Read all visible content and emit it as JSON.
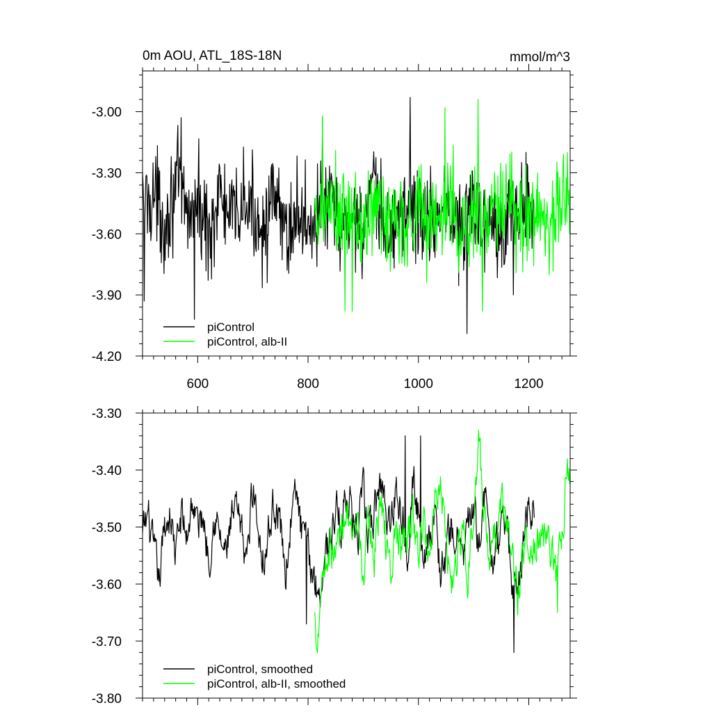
{
  "chart_data": [
    {
      "type": "line",
      "title": "0m AOU, ATL_18S-18N",
      "units": "mmol/m^3",
      "xlabel": "",
      "ylabel": "",
      "xlim": [
        500,
        1275
      ],
      "ylim": [
        -4.2,
        -2.8
      ],
      "xticks": [
        600,
        800,
        1000,
        1200
      ],
      "xtick_labels": [
        "600",
        "800",
        "1000",
        "1200"
      ],
      "yticks": [
        -4.2,
        -3.9,
        -3.6,
        -3.3,
        -3.0
      ],
      "ytick_labels": [
        "-4.20",
        "-3.90",
        "-3.60",
        "-3.30",
        "-3.00"
      ],
      "grid": false,
      "legend_position": "bottom-left",
      "series": [
        {
          "name": "piControl",
          "color": "#000000",
          "x_start": 500,
          "x_end": 1210,
          "points": [
            [
              500,
              -3.45
            ],
            [
              520,
              -3.4
            ],
            [
              540,
              -3.55
            ],
            [
              560,
              -3.35
            ],
            [
              580,
              -3.5
            ],
            [
              600,
              -3.45
            ],
            [
              620,
              -3.6
            ],
            [
              640,
              -3.4
            ],
            [
              660,
              -3.55
            ],
            [
              680,
              -3.45
            ],
            [
              700,
              -3.5
            ],
            [
              720,
              -3.55
            ],
            [
              740,
              -3.45
            ],
            [
              760,
              -3.6
            ],
            [
              780,
              -3.5
            ],
            [
              800,
              -3.55
            ],
            [
              820,
              -3.5
            ],
            [
              840,
              -3.45
            ],
            [
              860,
              -3.6
            ],
            [
              880,
              -3.5
            ],
            [
              900,
              -3.55
            ],
            [
              920,
              -3.4
            ],
            [
              940,
              -3.6
            ],
            [
              960,
              -3.55
            ],
            [
              980,
              -3.45
            ],
            [
              1000,
              -3.5
            ],
            [
              1020,
              -3.55
            ],
            [
              1040,
              -3.45
            ],
            [
              1060,
              -3.5
            ],
            [
              1080,
              -3.6
            ],
            [
              1100,
              -3.45
            ],
            [
              1120,
              -3.55
            ],
            [
              1140,
              -3.5
            ],
            [
              1160,
              -3.55
            ],
            [
              1180,
              -3.45
            ],
            [
              1200,
              -3.5
            ],
            [
              1210,
              -3.55
            ]
          ],
          "mean": -3.52,
          "spread": 0.16,
          "extremes": [
            [
              503,
              -3.93
            ],
            [
              570,
              -3.03
            ],
            [
              594,
              -4.02
            ],
            [
              826,
              -3.03
            ],
            [
              985,
              -2.93
            ],
            [
              1088,
              -4.09
            ],
            [
              1172,
              -3.9
            ],
            [
              1195,
              -3.2
            ]
          ]
        },
        {
          "name": "piControl, alb-II",
          "color": "#00ff00",
          "x_start": 812,
          "x_end": 1275,
          "points": [
            [
              812,
              -3.6
            ],
            [
              840,
              -3.45
            ],
            [
              860,
              -3.55
            ],
            [
              880,
              -3.5
            ],
            [
              900,
              -3.6
            ],
            [
              920,
              -3.45
            ],
            [
              940,
              -3.55
            ],
            [
              960,
              -3.5
            ],
            [
              980,
              -3.55
            ],
            [
              1000,
              -3.45
            ],
            [
              1020,
              -3.55
            ],
            [
              1040,
              -3.5
            ],
            [
              1060,
              -3.45
            ],
            [
              1080,
              -3.6
            ],
            [
              1100,
              -3.5
            ],
            [
              1120,
              -3.55
            ],
            [
              1140,
              -3.5
            ],
            [
              1160,
              -3.45
            ],
            [
              1180,
              -3.55
            ],
            [
              1200,
              -3.5
            ],
            [
              1220,
              -3.5
            ],
            [
              1240,
              -3.55
            ],
            [
              1260,
              -3.45
            ],
            [
              1275,
              -3.45
            ]
          ],
          "mean": -3.52,
          "spread": 0.17,
          "extremes": [
            [
              826,
              -3.02
            ],
            [
              867,
              -3.98
            ],
            [
              880,
              -3.98
            ],
            [
              1048,
              -2.98
            ],
            [
              1108,
              -2.94
            ],
            [
              1116,
              -3.98
            ],
            [
              1270,
              -3.2
            ]
          ]
        }
      ]
    },
    {
      "type": "line",
      "title": "",
      "xlabel": "",
      "ylabel": "",
      "xlim": [
        500,
        1275
      ],
      "ylim": [
        -3.8,
        -3.3
      ],
      "xticks": [
        600,
        800,
        1000,
        1200
      ],
      "xtick_labels": [],
      "yticks": [
        -3.8,
        -3.7,
        -3.6,
        -3.5,
        -3.4,
        -3.3
      ],
      "ytick_labels": [
        "-3.80",
        "-3.70",
        "-3.60",
        "-3.50",
        "-3.40",
        "-3.30"
      ],
      "grid": false,
      "legend_position": "bottom-left",
      "series": [
        {
          "name": "piControl, smoothed",
          "color": "#000000",
          "x_start": 500,
          "x_end": 1210,
          "points": [
            [
              500,
              -3.52
            ],
            [
              510,
              -3.48
            ],
            [
              520,
              -3.55
            ],
            [
              530,
              -3.6
            ],
            [
              540,
              -3.5
            ],
            [
              550,
              -3.47
            ],
            [
              560,
              -3.55
            ],
            [
              570,
              -3.48
            ],
            [
              580,
              -3.52
            ],
            [
              590,
              -3.45
            ],
            [
              600,
              -3.5
            ],
            [
              610,
              -3.48
            ],
            [
              620,
              -3.55
            ],
            [
              630,
              -3.47
            ],
            [
              640,
              -3.52
            ],
            [
              650,
              -3.55
            ],
            [
              660,
              -3.5
            ],
            [
              670,
              -3.48
            ],
            [
              680,
              -3.52
            ],
            [
              690,
              -3.55
            ],
            [
              700,
              -3.42
            ],
            [
              710,
              -3.5
            ],
            [
              720,
              -3.55
            ],
            [
              730,
              -3.5
            ],
            [
              740,
              -3.45
            ],
            [
              750,
              -3.5
            ],
            [
              760,
              -3.58
            ],
            [
              770,
              -3.47
            ],
            [
              780,
              -3.45
            ],
            [
              790,
              -3.52
            ],
            [
              800,
              -3.55
            ],
            [
              810,
              -3.58
            ],
            [
              820,
              -3.62
            ],
            [
              830,
              -3.55
            ],
            [
              840,
              -3.52
            ],
            [
              850,
              -3.47
            ],
            [
              860,
              -3.5
            ],
            [
              870,
              -3.43
            ],
            [
              880,
              -3.48
            ],
            [
              890,
              -3.52
            ],
            [
              900,
              -3.45
            ],
            [
              910,
              -3.52
            ],
            [
              920,
              -3.48
            ],
            [
              930,
              -3.42
            ],
            [
              940,
              -3.45
            ],
            [
              950,
              -3.5
            ],
            [
              960,
              -3.42
            ],
            [
              970,
              -3.48
            ],
            [
              980,
              -3.52
            ],
            [
              990,
              -3.42
            ],
            [
              1000,
              -3.48
            ],
            [
              1010,
              -3.55
            ],
            [
              1020,
              -3.5
            ],
            [
              1030,
              -3.47
            ],
            [
              1040,
              -3.58
            ],
            [
              1050,
              -3.55
            ],
            [
              1060,
              -3.5
            ],
            [
              1070,
              -3.52
            ],
            [
              1080,
              -3.55
            ],
            [
              1090,
              -3.5
            ],
            [
              1100,
              -3.48
            ],
            [
              1110,
              -3.52
            ],
            [
              1120,
              -3.45
            ],
            [
              1130,
              -3.53
            ],
            [
              1140,
              -3.55
            ],
            [
              1150,
              -3.52
            ],
            [
              1160,
              -3.48
            ],
            [
              1170,
              -3.6
            ],
            [
              1180,
              -3.62
            ],
            [
              1190,
              -3.52
            ],
            [
              1200,
              -3.45
            ],
            [
              1210,
              -3.48
            ]
          ],
          "extremes": [
            [
              797,
              -3.67
            ],
            [
              976,
              -3.34
            ],
            [
              1004,
              -3.34
            ],
            [
              1173,
              -3.72
            ]
          ]
        },
        {
          "name": "piControl, alb-II, smoothed",
          "color": "#00ff00",
          "x_start": 812,
          "x_end": 1275,
          "points": [
            [
              812,
              -3.66
            ],
            [
              815,
              -3.7
            ],
            [
              825,
              -3.58
            ],
            [
              840,
              -3.53
            ],
            [
              850,
              -3.55
            ],
            [
              860,
              -3.5
            ],
            [
              870,
              -3.45
            ],
            [
              880,
              -3.55
            ],
            [
              890,
              -3.52
            ],
            [
              900,
              -3.58
            ],
            [
              910,
              -3.5
            ],
            [
              920,
              -3.55
            ],
            [
              930,
              -3.45
            ],
            [
              940,
              -3.52
            ],
            [
              950,
              -3.58
            ],
            [
              960,
              -3.5
            ],
            [
              970,
              -3.55
            ],
            [
              980,
              -3.52
            ],
            [
              990,
              -3.48
            ],
            [
              1000,
              -3.55
            ],
            [
              1010,
              -3.5
            ],
            [
              1020,
              -3.55
            ],
            [
              1030,
              -3.45
            ],
            [
              1040,
              -3.4
            ],
            [
              1050,
              -3.52
            ],
            [
              1060,
              -3.6
            ],
            [
              1070,
              -3.55
            ],
            [
              1080,
              -3.5
            ],
            [
              1090,
              -3.58
            ],
            [
              1100,
              -3.47
            ],
            [
              1110,
              -3.36
            ],
            [
              1120,
              -3.5
            ],
            [
              1130,
              -3.58
            ],
            [
              1140,
              -3.52
            ],
            [
              1150,
              -3.45
            ],
            [
              1160,
              -3.5
            ],
            [
              1170,
              -3.55
            ],
            [
              1180,
              -3.62
            ],
            [
              1190,
              -3.55
            ],
            [
              1200,
              -3.5
            ],
            [
              1210,
              -3.55
            ],
            [
              1220,
              -3.52
            ],
            [
              1230,
              -3.5
            ],
            [
              1240,
              -3.55
            ],
            [
              1250,
              -3.6
            ],
            [
              1260,
              -3.52
            ],
            [
              1270,
              -3.38
            ],
            [
              1275,
              -3.44
            ]
          ],
          "extremes": [
            [
              1110,
              -3.35
            ],
            [
              1252,
              -3.65
            ],
            [
              1270,
              -3.38
            ]
          ]
        }
      ]
    }
  ]
}
